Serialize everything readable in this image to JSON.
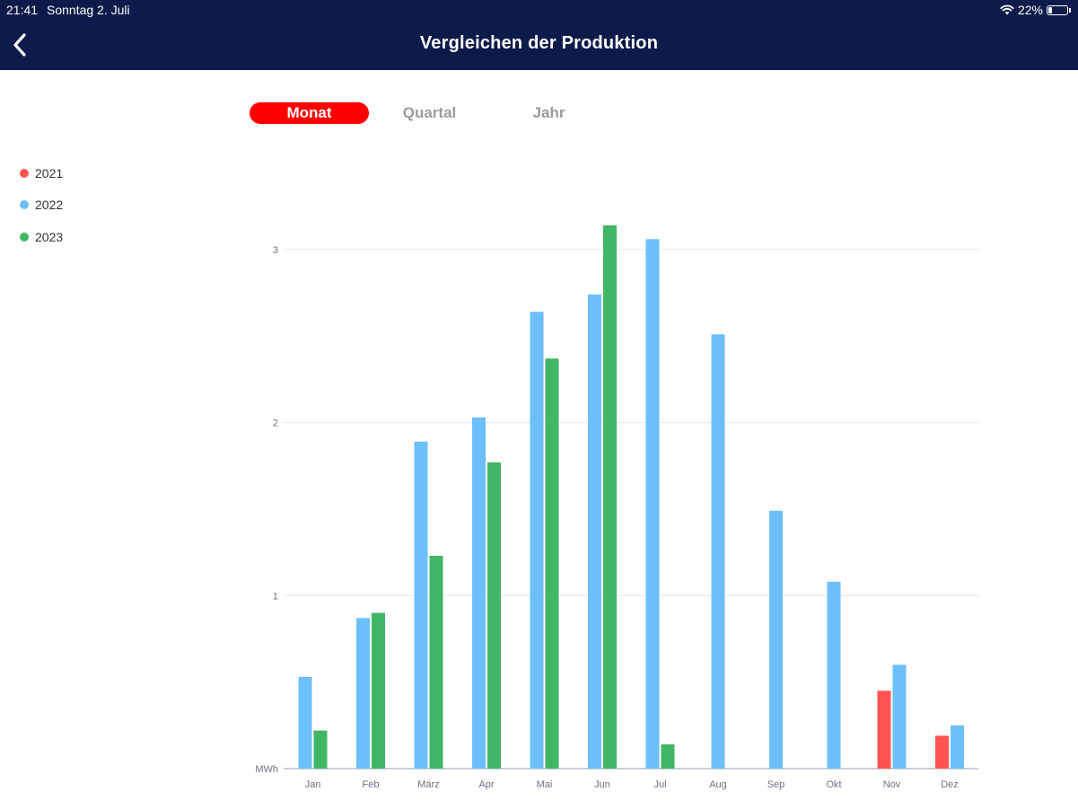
{
  "status": {
    "time": "21:41",
    "date": "Sonntag 2. Juli",
    "battery": "22%"
  },
  "header": {
    "title": "Vergleichen der Produktion"
  },
  "tabs": [
    {
      "label": "Monat",
      "active": true
    },
    {
      "label": "Quartal",
      "active": false
    },
    {
      "label": "Jahr",
      "active": false
    }
  ],
  "colors": {
    "header_bg": "#0c1b49",
    "accent": "#ff0000"
  },
  "chart_data": {
    "type": "bar",
    "unit": "MWh",
    "categories": [
      "Jan",
      "Feb",
      "März",
      "Apr",
      "Mai",
      "Jun",
      "Jul",
      "Aug",
      "Sep",
      "Okt",
      "Nov",
      "Dez"
    ],
    "yticks": [
      1,
      2,
      3
    ],
    "ylim": [
      0,
      3.1
    ],
    "grid": true,
    "legend_position": "left",
    "series": [
      {
        "name": "2021",
        "color": "#ff5252",
        "values": [
          null,
          null,
          null,
          null,
          null,
          null,
          null,
          null,
          null,
          null,
          0.45,
          0.19
        ]
      },
      {
        "name": "2022",
        "color": "#6cbff9",
        "values": [
          0.53,
          0.87,
          1.89,
          2.03,
          2.64,
          2.74,
          3.06,
          2.51,
          1.49,
          1.08,
          0.6,
          0.25
        ]
      },
      {
        "name": "2023",
        "color": "#41b665",
        "values": [
          0.22,
          0.9,
          1.23,
          1.77,
          2.37,
          3.14,
          0.14,
          null,
          null,
          null,
          null,
          null
        ]
      }
    ]
  }
}
